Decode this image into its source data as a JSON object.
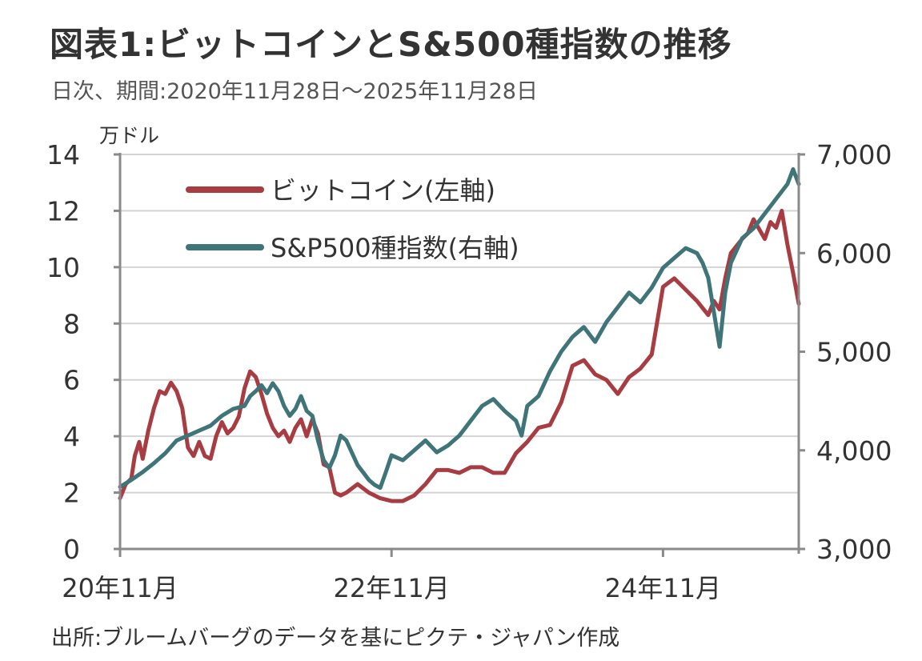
{
  "title": "図表1:ビットコインとS&500種指数の推移",
  "subtitle": "日次、期間:2020年11月28日～2025年11月28日",
  "source": "出所:ブルームバーグのデータを基にピクテ・ジャパン作成",
  "colors": {
    "bitcoin": "#a83c43",
    "sp500": "#3f7478",
    "grid": "#d4d4d4",
    "axis": "#8a8a8a"
  },
  "chart_data": {
    "type": "line",
    "left_axis": {
      "unit_label": "万ドル",
      "range": [
        0,
        14
      ],
      "ticks": [
        "0",
        "2",
        "4",
        "6",
        "8",
        "10",
        "12",
        "14"
      ]
    },
    "right_axis": {
      "range": [
        3000,
        7000
      ],
      "ticks": [
        "3,000",
        "4,000",
        "5,000",
        "6,000",
        "7,000"
      ]
    },
    "x_axis": {
      "range": [
        0,
        60
      ],
      "ticks": [
        {
          "x": 0,
          "label": "20年11月"
        },
        {
          "x": 24,
          "label": "22年11月"
        },
        {
          "x": 48,
          "label": "24年11月"
        }
      ]
    },
    "legend": {
      "position": "top-left"
    },
    "series": [
      {
        "name": "ビットコイン(左軸)",
        "axis": "left",
        "points": [
          [
            0,
            1.8
          ],
          [
            0.5,
            2.3
          ],
          [
            1,
            2.5
          ],
          [
            1.3,
            3.3
          ],
          [
            1.7,
            3.8
          ],
          [
            2,
            3.2
          ],
          [
            2.5,
            4.2
          ],
          [
            3,
            5.0
          ],
          [
            3.5,
            5.6
          ],
          [
            4,
            5.5
          ],
          [
            4.5,
            5.9
          ],
          [
            5,
            5.6
          ],
          [
            5.5,
            5.0
          ],
          [
            6,
            3.6
          ],
          [
            6.5,
            3.3
          ],
          [
            7,
            3.8
          ],
          [
            7.5,
            3.3
          ],
          [
            8,
            3.2
          ],
          [
            8.5,
            4.0
          ],
          [
            9,
            4.5
          ],
          [
            9.5,
            4.1
          ],
          [
            10,
            4.3
          ],
          [
            10.5,
            4.7
          ],
          [
            11,
            5.7
          ],
          [
            11.5,
            6.3
          ],
          [
            12,
            6.1
          ],
          [
            12.5,
            5.5
          ],
          [
            13,
            4.8
          ],
          [
            13.5,
            4.3
          ],
          [
            14,
            4.0
          ],
          [
            14.5,
            4.2
          ],
          [
            15,
            3.8
          ],
          [
            15.5,
            4.3
          ],
          [
            16,
            4.6
          ],
          [
            16.5,
            4.0
          ],
          [
            17,
            4.6
          ],
          [
            17.5,
            4.1
          ],
          [
            18,
            3.0
          ],
          [
            18.5,
            2.9
          ],
          [
            19,
            2.0
          ],
          [
            19.5,
            1.9
          ],
          [
            20,
            2.0
          ],
          [
            21,
            2.3
          ],
          [
            22,
            2.0
          ],
          [
            23,
            1.8
          ],
          [
            24,
            1.7
          ],
          [
            25,
            1.7
          ],
          [
            26,
            1.9
          ],
          [
            27,
            2.3
          ],
          [
            28,
            2.8
          ],
          [
            29,
            2.8
          ],
          [
            30,
            2.7
          ],
          [
            31,
            2.9
          ],
          [
            32,
            2.9
          ],
          [
            33,
            2.7
          ],
          [
            34,
            2.7
          ],
          [
            35,
            3.4
          ],
          [
            36,
            3.8
          ],
          [
            37,
            4.3
          ],
          [
            38,
            4.4
          ],
          [
            39,
            5.2
          ],
          [
            40,
            6.5
          ],
          [
            41,
            6.7
          ],
          [
            42,
            6.2
          ],
          [
            43,
            6.0
          ],
          [
            44,
            5.5
          ],
          [
            45,
            6.1
          ],
          [
            46,
            6.4
          ],
          [
            47,
            6.9
          ],
          [
            48,
            9.3
          ],
          [
            49,
            9.6
          ],
          [
            50,
            9.2
          ],
          [
            51,
            8.8
          ],
          [
            52,
            8.3
          ],
          [
            52.5,
            8.8
          ],
          [
            53,
            8.5
          ],
          [
            53.5,
            9.6
          ],
          [
            54,
            10.5
          ],
          [
            55,
            11.0
          ],
          [
            55.5,
            11.2
          ],
          [
            56,
            11.7
          ],
          [
            57,
            11.0
          ],
          [
            57.5,
            11.6
          ],
          [
            58,
            11.4
          ],
          [
            58.5,
            12.0
          ],
          [
            59,
            10.8
          ],
          [
            59.5,
            9.8
          ],
          [
            60,
            8.7
          ]
        ]
      },
      {
        "name": "S&P500種指数(右軸)",
        "axis": "right",
        "points": [
          [
            0,
            3630
          ],
          [
            1,
            3700
          ],
          [
            2,
            3780
          ],
          [
            3,
            3870
          ],
          [
            4,
            3970
          ],
          [
            5,
            4100
          ],
          [
            6,
            4150
          ],
          [
            7,
            4200
          ],
          [
            8,
            4250
          ],
          [
            9,
            4350
          ],
          [
            10,
            4420
          ],
          [
            11,
            4450
          ],
          [
            11.5,
            4550
          ],
          [
            12,
            4600
          ],
          [
            12.5,
            4660
          ],
          [
            13,
            4580
          ],
          [
            13.5,
            4680
          ],
          [
            14,
            4600
          ],
          [
            14.5,
            4450
          ],
          [
            15,
            4350
          ],
          [
            15.5,
            4420
          ],
          [
            16,
            4550
          ],
          [
            16.5,
            4400
          ],
          [
            17,
            4350
          ],
          [
            17.5,
            4100
          ],
          [
            18,
            3900
          ],
          [
            18.5,
            3820
          ],
          [
            19,
            3950
          ],
          [
            19.5,
            4150
          ],
          [
            20,
            4100
          ],
          [
            21,
            3850
          ],
          [
            22,
            3700
          ],
          [
            22.5,
            3650
          ],
          [
            23,
            3620
          ],
          [
            23.5,
            3780
          ],
          [
            24,
            3950
          ],
          [
            25,
            3900
          ],
          [
            26,
            4000
          ],
          [
            27,
            4100
          ],
          [
            28,
            3980
          ],
          [
            29,
            4050
          ],
          [
            30,
            4150
          ],
          [
            31,
            4300
          ],
          [
            32,
            4450
          ],
          [
            33,
            4520
          ],
          [
            34,
            4400
          ],
          [
            35,
            4300
          ],
          [
            35.5,
            4150
          ],
          [
            36,
            4450
          ],
          [
            37,
            4550
          ],
          [
            38,
            4800
          ],
          [
            39,
            5000
          ],
          [
            40,
            5150
          ],
          [
            41,
            5250
          ],
          [
            42,
            5100
          ],
          [
            43,
            5300
          ],
          [
            44,
            5450
          ],
          [
            45,
            5600
          ],
          [
            46,
            5500
          ],
          [
            47,
            5650
          ],
          [
            48,
            5850
          ],
          [
            49,
            5950
          ],
          [
            50,
            6050
          ],
          [
            51,
            6000
          ],
          [
            51.5,
            5900
          ],
          [
            52,
            5750
          ],
          [
            52.5,
            5400
          ],
          [
            53,
            5050
          ],
          [
            53.5,
            5600
          ],
          [
            54,
            5900
          ],
          [
            55,
            6150
          ],
          [
            56,
            6250
          ],
          [
            57,
            6400
          ],
          [
            58,
            6550
          ],
          [
            59,
            6700
          ],
          [
            59.5,
            6850
          ],
          [
            60,
            6700
          ]
        ]
      }
    ]
  }
}
